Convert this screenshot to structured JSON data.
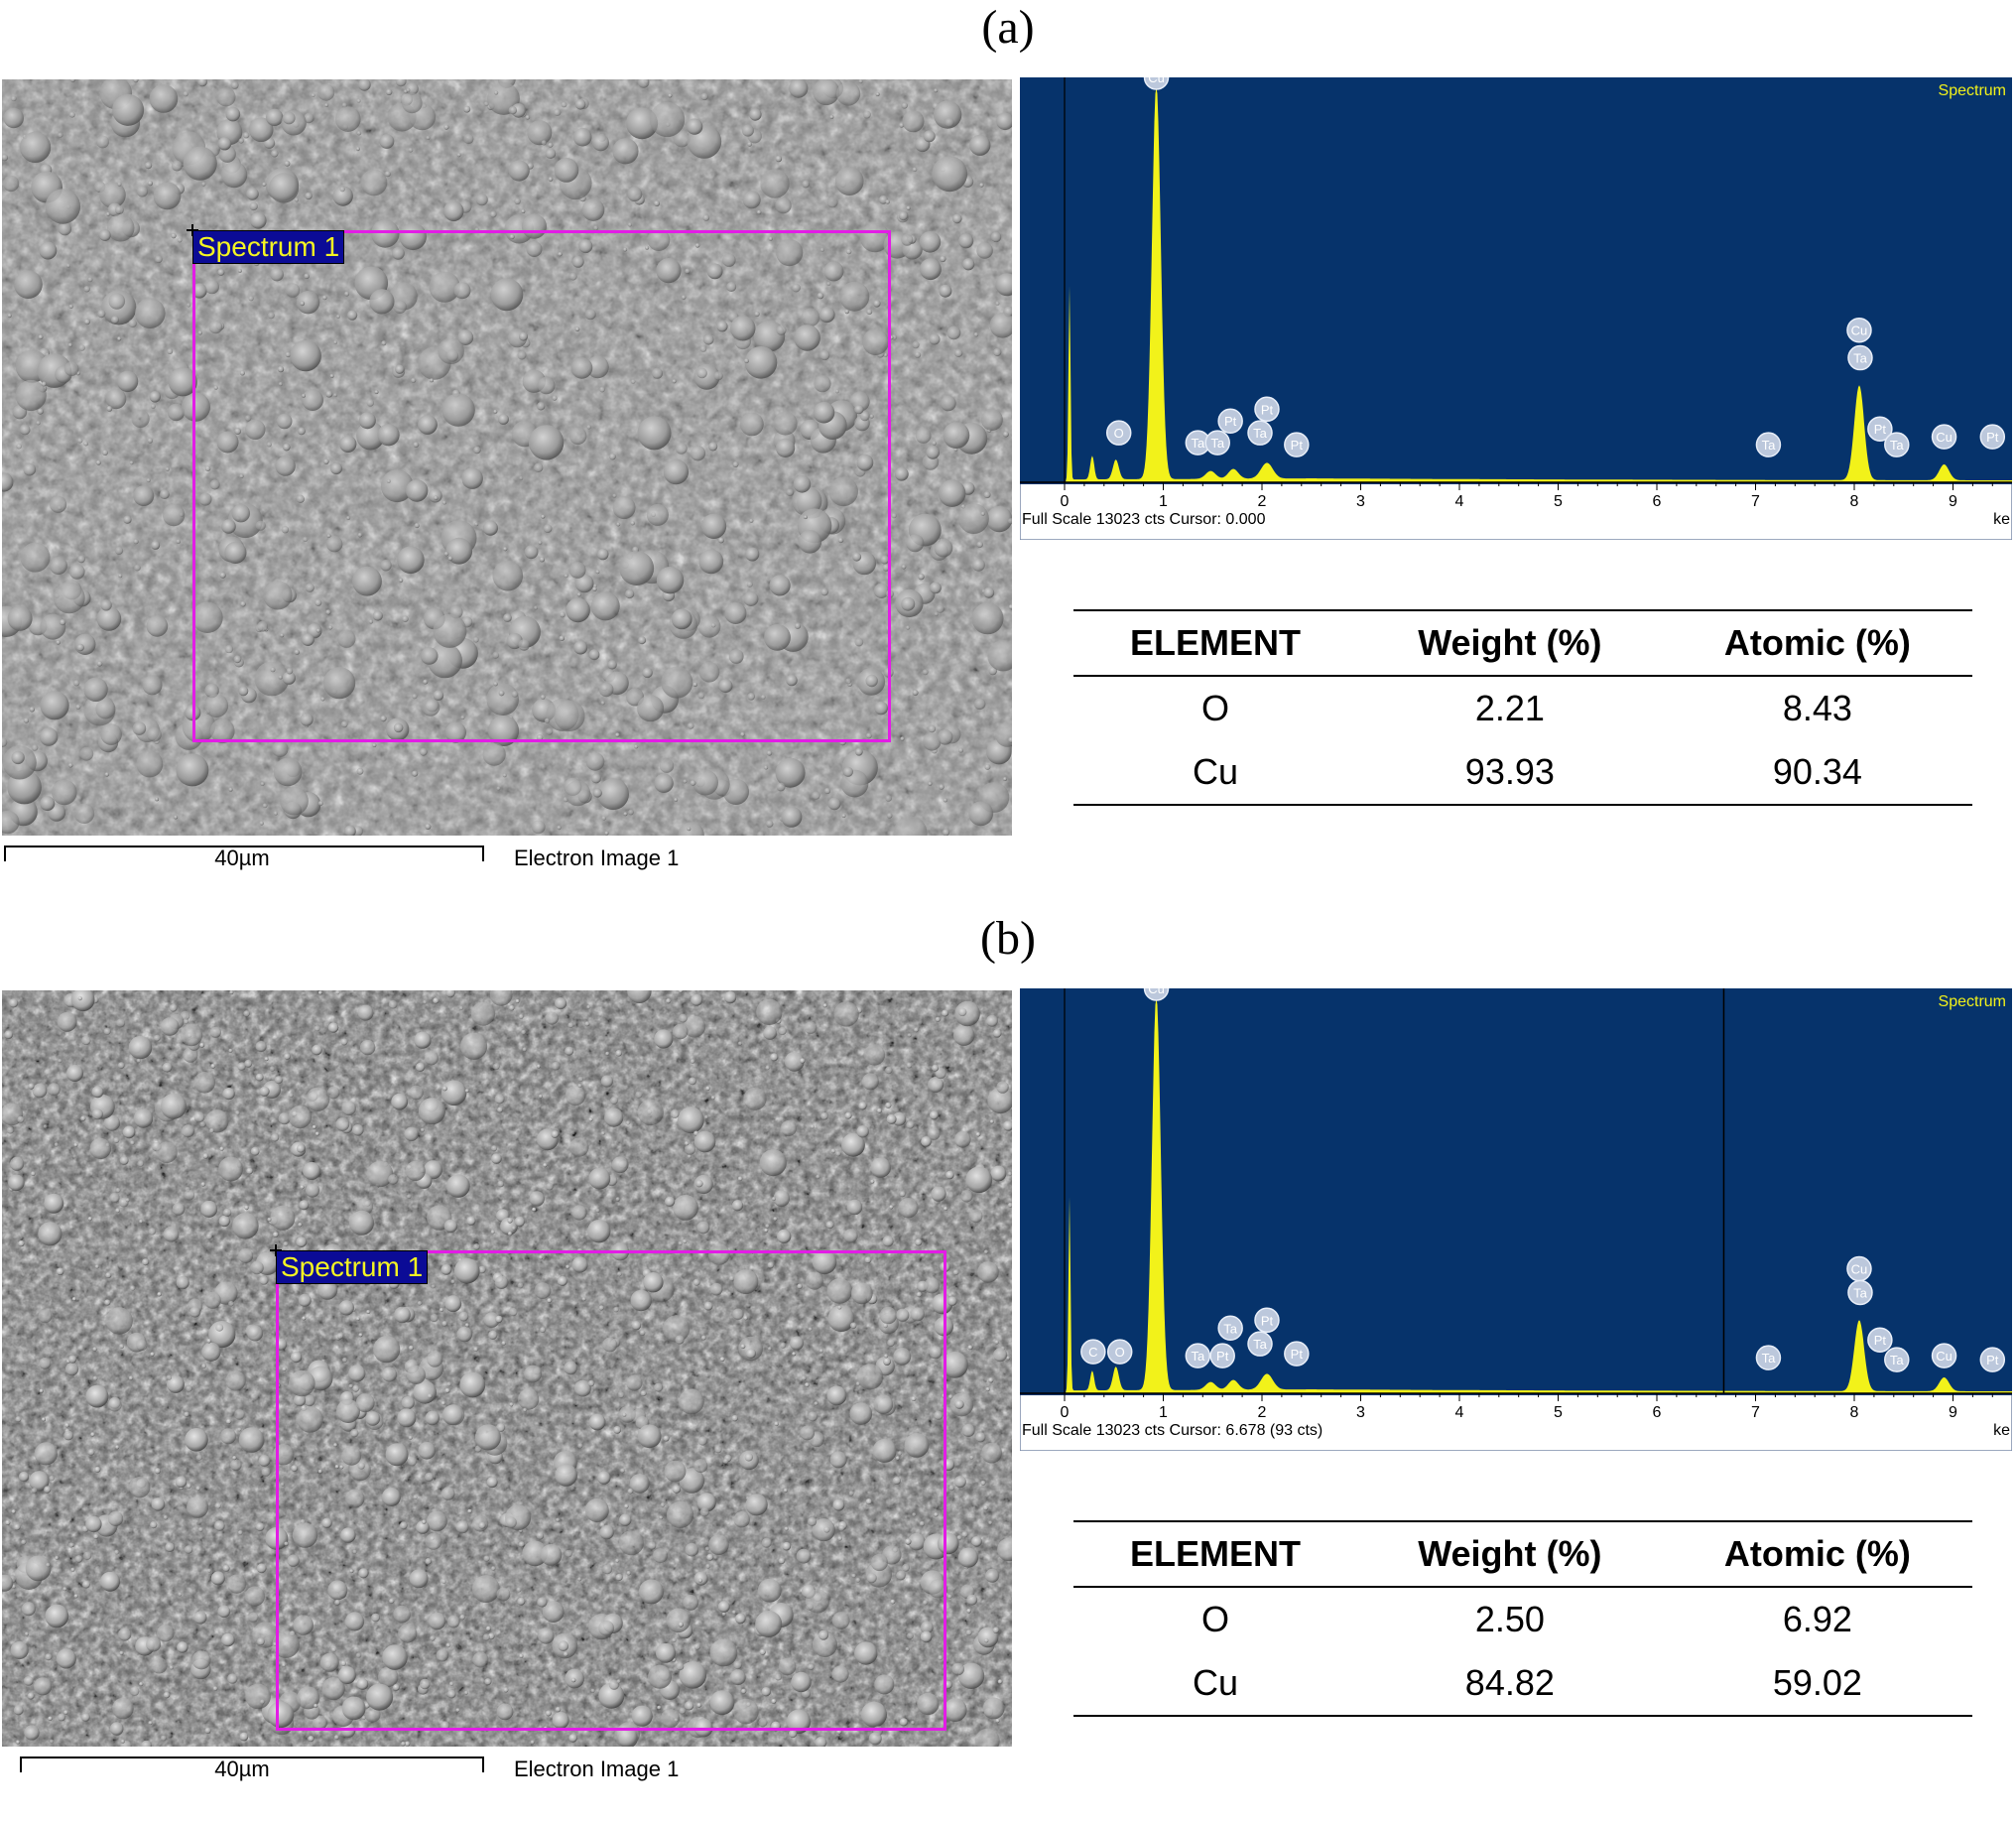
{
  "panels": [
    {
      "label": "(a)",
      "sem": {
        "region_label": "Spectrum 1",
        "scale_label": "40µm",
        "caption": "Electron Image 1"
      },
      "spectrum": {
        "title": "Spectrum",
        "status": "Full Scale 13023 cts Cursor: 0.000",
        "x_unit": "ke",
        "x_ticks": [
          "0",
          "1",
          "2",
          "3",
          "4",
          "5",
          "6",
          "7",
          "8",
          "9"
        ],
        "cursor_kev": 0.0,
        "peak_labels": [
          "Cu",
          "O",
          "Ta",
          "Pt",
          "Ta",
          "Ta",
          "Pt",
          "Pt",
          "Ta",
          "Cu",
          "Ta",
          "Pt",
          "Ta",
          "Cu",
          "Pt"
        ]
      },
      "table": {
        "headers": [
          "ELEMENT",
          "Weight (%)",
          "Atomic (%)"
        ],
        "rows": [
          [
            "O",
            "2.21",
            "8.43"
          ],
          [
            "Cu",
            "93.93",
            "90.34"
          ]
        ]
      }
    },
    {
      "label": "(b)",
      "sem": {
        "region_label": "Spectrum 1",
        "scale_label": "40µm",
        "caption": "Electron Image 1"
      },
      "spectrum": {
        "title": "Spectrum",
        "status": "Full Scale 13023 cts Cursor: 6.678  (93 cts)",
        "x_unit": "ke",
        "x_ticks": [
          "0",
          "1",
          "2",
          "3",
          "4",
          "5",
          "6",
          "7",
          "8",
          "9"
        ],
        "cursor_kev": 6.678,
        "peak_labels": [
          "Cu",
          "C",
          "O",
          "Ta",
          "Pt",
          "Ta",
          "Ta",
          "Pt",
          "Pt",
          "Ta",
          "Cu",
          "Ta",
          "Pt",
          "Ta",
          "Cu",
          "Pt"
        ]
      },
      "table": {
        "headers": [
          "ELEMENT",
          "Weight (%)",
          "Atomic (%)"
        ],
        "rows": [
          [
            "O",
            "2.50",
            "6.92"
          ],
          [
            "Cu",
            "84.82",
            "59.02"
          ]
        ]
      }
    }
  ],
  "colors": {
    "spectrum_bg": "#06336b",
    "spectrum_fill": "#f2f21a",
    "region_box": "#e31ce6",
    "tag_bg": "#0b0b96",
    "tag_text": "#f5f522"
  }
}
